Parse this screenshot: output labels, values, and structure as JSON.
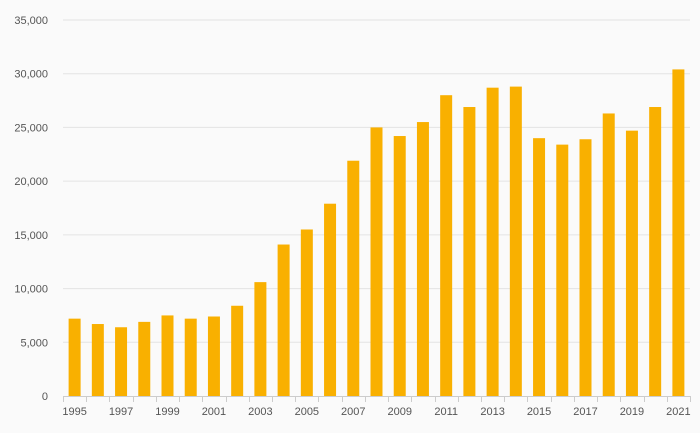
{
  "chart_data": {
    "type": "bar",
    "title": "",
    "xlabel": "",
    "ylabel": "",
    "categories": [
      "1995",
      "1996",
      "1997",
      "1998",
      "1999",
      "2000",
      "2001",
      "2002",
      "2003",
      "2004",
      "2005",
      "2006",
      "2007",
      "2008",
      "2009",
      "2010",
      "2011",
      "2012",
      "2013",
      "2014",
      "2015",
      "2016",
      "2017",
      "2018",
      "2019",
      "2020",
      "2021"
    ],
    "values": [
      7200,
      6700,
      6400,
      6900,
      7500,
      7200,
      7400,
      8400,
      10600,
      14100,
      15500,
      17900,
      21900,
      25000,
      24200,
      25500,
      28000,
      26900,
      28700,
      28800,
      24000,
      23400,
      23900,
      26300,
      24700,
      26900,
      30400
    ],
    "x_tick_labels": [
      "1995",
      "1997",
      "1999",
      "2001",
      "2003",
      "2005",
      "2007",
      "2009",
      "2011",
      "2013",
      "2015",
      "2017",
      "2019",
      "2021"
    ],
    "y_tick_labels": [
      "0",
      "5,000",
      "10,000",
      "15,000",
      "20,000",
      "25,000",
      "30,000",
      "35,000"
    ],
    "ylim": [
      0,
      35000
    ],
    "y_tick_step": 5000,
    "grid": true,
    "legend": "none",
    "colors": {
      "bar": "#F9B000",
      "grid": "#e3e3e3",
      "axis": "#cccccc",
      "text": "#555555",
      "background": "#fafafa"
    }
  }
}
